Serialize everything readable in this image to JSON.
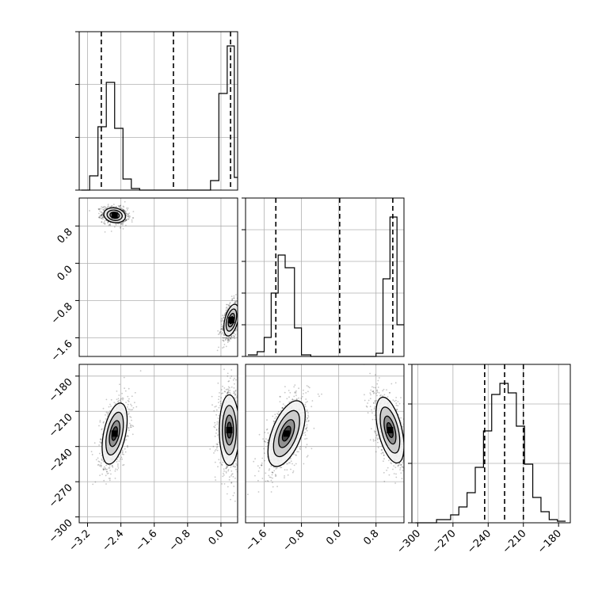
{
  "chart_data": {
    "type": "corner",
    "title": "",
    "parameters": [
      {
        "label": "",
        "range": [
          -3.4,
          0.4
        ]
      },
      {
        "label": "",
        "range": [
          -2.0,
          1.4
        ]
      },
      {
        "label": "",
        "range": [
          -305,
          -170
        ]
      }
    ],
    "grid": true,
    "histograms": [
      {
        "param": 0,
        "quantiles": [
          -2.87,
          -1.14,
          0.23
        ],
        "y_ticks": [
          0.0,
          0.333,
          0.667,
          1.0
        ],
        "bins": [
          {
            "x0": -3.35,
            "x1": -3.15,
            "v": 0.0
          },
          {
            "x0": -3.15,
            "x1": -2.95,
            "v": 0.09
          },
          {
            "x0": -2.95,
            "x1": -2.75,
            "v": 0.4
          },
          {
            "x0": -2.75,
            "x1": -2.55,
            "v": 0.68
          },
          {
            "x0": -2.55,
            "x1": -2.35,
            "v": 0.39
          },
          {
            "x0": -2.35,
            "x1": -2.15,
            "v": 0.07
          },
          {
            "x0": -2.15,
            "x1": -1.95,
            "v": 0.01
          },
          {
            "x0": -1.95,
            "x1": -0.25,
            "v": 0.0
          },
          {
            "x0": -0.25,
            "x1": -0.05,
            "v": 0.06
          },
          {
            "x0": -0.05,
            "x1": 0.15,
            "v": 0.61
          },
          {
            "x0": 0.15,
            "x1": 0.25,
            "v": 0.91
          },
          {
            "x0": 0.25,
            "x1": 0.32,
            "v": 0.91
          },
          {
            "x0": 0.32,
            "x1": 0.4,
            "v": 0.08
          }
        ]
      },
      {
        "param": 1,
        "quantiles": [
          -1.35,
          0.02,
          1.16
        ],
        "y_ticks": [
          0.0,
          0.2,
          0.4,
          0.6,
          0.8,
          1.0
        ],
        "bins": [
          {
            "x0": -1.95,
            "x1": -1.75,
            "v": 0.01
          },
          {
            "x0": -1.75,
            "x1": -1.6,
            "v": 0.03
          },
          {
            "x0": -1.6,
            "x1": -1.45,
            "v": 0.12
          },
          {
            "x0": -1.45,
            "x1": -1.3,
            "v": 0.4
          },
          {
            "x0": -1.3,
            "x1": -1.15,
            "v": 0.64
          },
          {
            "x0": -1.15,
            "x1": -0.95,
            "v": 0.56
          },
          {
            "x0": -0.95,
            "x1": -0.8,
            "v": 0.18
          },
          {
            "x0": -0.8,
            "x1": -0.6,
            "v": 0.01
          },
          {
            "x0": -0.6,
            "x1": 0.8,
            "v": 0.0
          },
          {
            "x0": 0.8,
            "x1": 0.95,
            "v": 0.02
          },
          {
            "x0": 0.95,
            "x1": 1.1,
            "v": 0.49
          },
          {
            "x0": 1.1,
            "x1": 1.25,
            "v": 0.88
          },
          {
            "x0": 1.25,
            "x1": 1.4,
            "v": 0.2
          }
        ]
      },
      {
        "param": 2,
        "quantiles": [
          -243,
          -226,
          -210
        ],
        "y_ticks": [
          0.0,
          0.375,
          0.75,
          1.0
        ],
        "bins": [
          {
            "x0": -302,
            "x1": -284,
            "v": 0.0
          },
          {
            "x0": -284,
            "x1": -272,
            "v": 0.02
          },
          {
            "x0": -272,
            "x1": -265,
            "v": 0.05
          },
          {
            "x0": -265,
            "x1": -258,
            "v": 0.1
          },
          {
            "x0": -258,
            "x1": -251,
            "v": 0.19
          },
          {
            "x0": -251,
            "x1": -244,
            "v": 0.35
          },
          {
            "x0": -244,
            "x1": -237,
            "v": 0.58
          },
          {
            "x0": -237,
            "x1": -230,
            "v": 0.81
          },
          {
            "x0": -230,
            "x1": -223,
            "v": 0.88
          },
          {
            "x0": -223,
            "x1": -216,
            "v": 0.82
          },
          {
            "x0": -216,
            "x1": -209,
            "v": 0.61
          },
          {
            "x0": -209,
            "x1": -202,
            "v": 0.37
          },
          {
            "x0": -202,
            "x1": -195,
            "v": 0.16
          },
          {
            "x0": -195,
            "x1": -188,
            "v": 0.07
          },
          {
            "x0": -188,
            "x1": -181,
            "v": 0.02
          },
          {
            "x0": -181,
            "x1": -174,
            "v": 0.01
          }
        ]
      }
    ],
    "scatter_panels": [
      {
        "x_param": 0,
        "y_param": 1,
        "clusters": [
          {
            "cx": -2.55,
            "cy": 1.03,
            "sx": 0.13,
            "sy": 0.08,
            "rho": -0.15,
            "n": 900
          },
          {
            "cx": 0.25,
            "cy": -1.22,
            "sx": 0.09,
            "sy": 0.17,
            "rho": 0.45,
            "n": 900
          }
        ]
      },
      {
        "x_param": 0,
        "y_param": 2,
        "clusters": [
          {
            "cx": -2.55,
            "cy": -229,
            "sx": 0.15,
            "sy": 13,
            "rho": 0.45,
            "n": 900
          },
          {
            "cx": 0.2,
            "cy": -226,
            "sx": 0.12,
            "sy": 15,
            "rho": 0.0,
            "n": 900
          }
        ]
      },
      {
        "x_param": 1,
        "y_param": 2,
        "clusters": [
          {
            "cx": -1.12,
            "cy": -229,
            "sx": 0.2,
            "sy": 14,
            "rho": 0.55,
            "n": 900
          },
          {
            "cx": 1.1,
            "cy": -226,
            "sx": 0.15,
            "sy": 14,
            "rho": -0.5,
            "n": 900
          }
        ]
      }
    ],
    "tick_labels": {
      "p0_x": [
        "−3.2",
        "−2.4",
        "−1.6",
        "−0.8",
        "0.0"
      ],
      "p1_y": [
        "0.8",
        "0.0",
        "−0.8",
        "−1.6"
      ],
      "p1_x": [
        "−1.6",
        "−0.8",
        "0.0",
        "0.8"
      ],
      "p2_y": [
        "−180",
        "−210",
        "−240",
        "−270",
        "−300"
      ],
      "p2_x": [
        "−300",
        "−270",
        "−240",
        "−210",
        "−180"
      ]
    }
  }
}
